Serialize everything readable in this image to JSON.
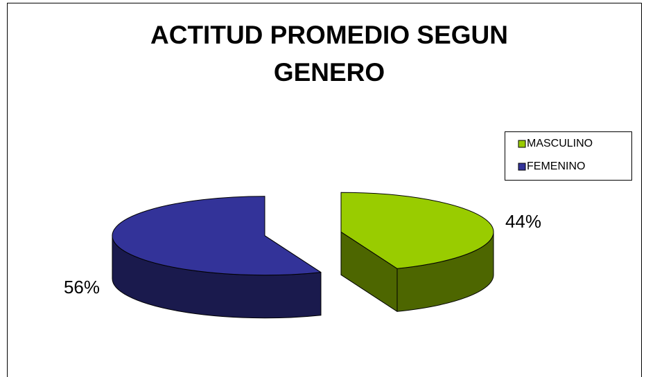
{
  "chart_data": {
    "type": "pie",
    "title": [
      "ACTITUD PROMEDIO SEGUN",
      "GENERO"
    ],
    "categories": [
      "MASCULINO",
      "FEMENINO"
    ],
    "values": [
      44,
      56
    ],
    "value_labels": [
      "44%",
      "56%"
    ],
    "colors": [
      "#99cc00",
      "#333399"
    ],
    "legend": "right",
    "exploded": true,
    "three_d": true
  }
}
